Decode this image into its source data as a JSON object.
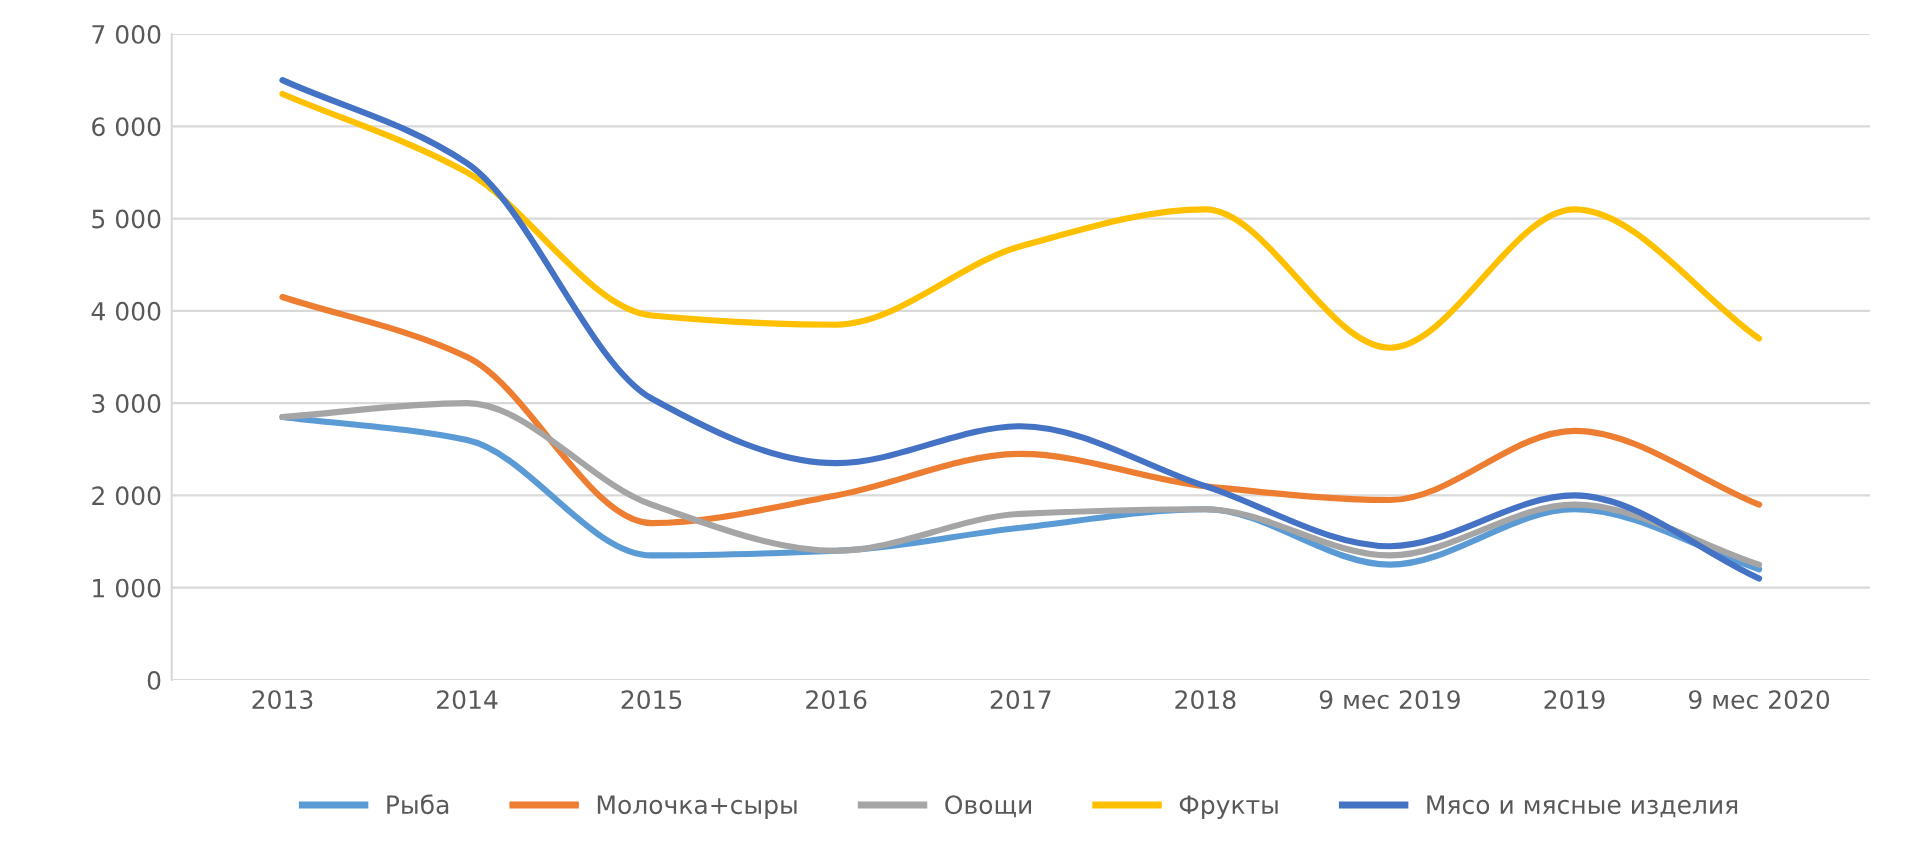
{
  "chart_data": {
    "type": "line",
    "categories": [
      "2013",
      "2014",
      "2015",
      "2016",
      "2017",
      "2018",
      "9 мес 2019",
      "2019",
      "9 мес 2020"
    ],
    "series": [
      {
        "name": "Рыба",
        "color": "#5b9bd5",
        "values": [
          2850,
          2600,
          1350,
          1400,
          1650,
          1850,
          1250,
          1850,
          1200
        ]
      },
      {
        "name": "Молочка+сыры",
        "color": "#ed7d31",
        "values": [
          4150,
          3500,
          1700,
          2000,
          2450,
          2100,
          1950,
          2700,
          1900
        ]
      },
      {
        "name": "Овощи",
        "color": "#a5a5a5",
        "values": [
          2850,
          3000,
          1900,
          1400,
          1800,
          1850,
          1350,
          1900,
          1250
        ]
      },
      {
        "name": "Фрукты",
        "color": "#ffc000",
        "values": [
          6350,
          5500,
          3950,
          3850,
          4700,
          5100,
          3600,
          5100,
          3700
        ]
      },
      {
        "name": "Мясо и мясные изделия",
        "color": "#4472c4",
        "values": [
          6500,
          5600,
          3050,
          2350,
          2750,
          2100,
          1450,
          2000,
          1100
        ]
      }
    ],
    "ylim": [
      0,
      7000
    ],
    "yticks": [
      0,
      {
        "value": 1000,
        "label": "1 000"
      },
      {
        "value": 2000,
        "label": "2 000"
      },
      {
        "value": 3000,
        "label": "3 000"
      },
      {
        "value": 4000,
        "label": "4 000"
      },
      {
        "value": 5000,
        "label": "5 000"
      },
      {
        "value": 6000,
        "label": "6 000"
      },
      {
        "value": 7000,
        "label": "7 000"
      }
    ],
    "grid": "y",
    "legend": "bottom",
    "marker": "none",
    "line_style": "solid"
  }
}
